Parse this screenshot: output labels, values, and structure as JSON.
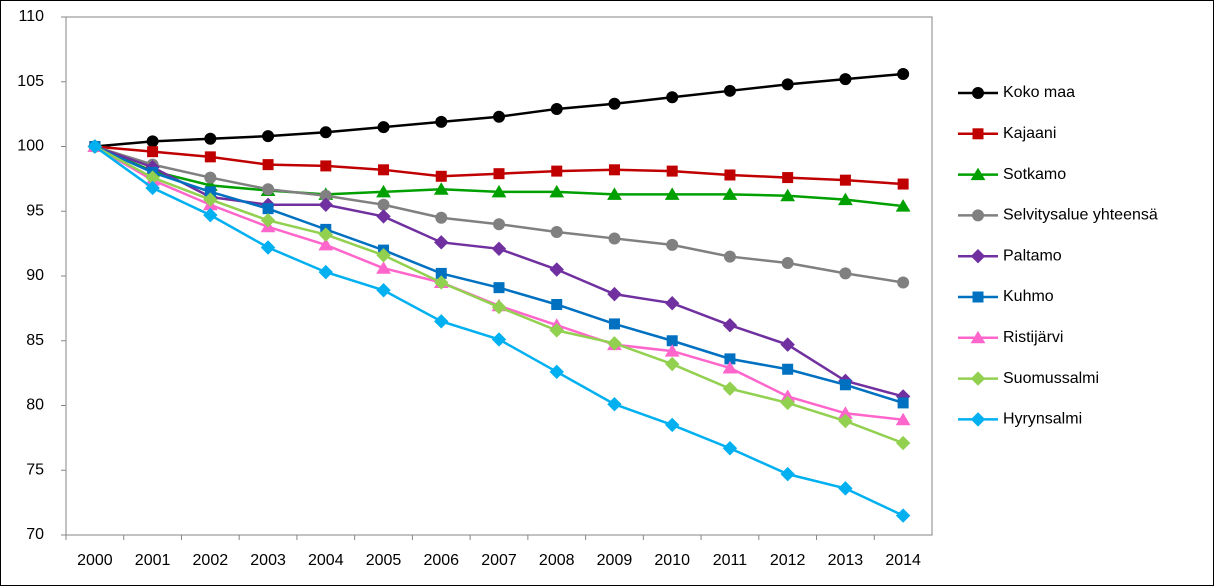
{
  "chart_data": {
    "type": "line",
    "categories": [
      "2000",
      "2001",
      "2002",
      "2003",
      "2004",
      "2005",
      "2006",
      "2007",
      "2008",
      "2009",
      "2010",
      "2011",
      "2012",
      "2013",
      "2014"
    ],
    "ylim": [
      70,
      110
    ],
    "yticks": [
      70,
      75,
      80,
      85,
      90,
      95,
      100,
      105,
      110
    ],
    "grid": false,
    "legend": "right",
    "series": [
      {
        "name": "Koko maa",
        "color": "#000000",
        "marker": "circle",
        "values": [
          100,
          100.4,
          100.6,
          100.8,
          101.1,
          101.5,
          101.9,
          102.3,
          102.9,
          103.3,
          103.8,
          104.3,
          104.8,
          105.2,
          105.6
        ]
      },
      {
        "name": "Kajaani",
        "color": "#c00000",
        "marker": "square",
        "values": [
          100,
          99.6,
          99.2,
          98.6,
          98.5,
          98.2,
          97.7,
          97.9,
          98.1,
          98.2,
          98.1,
          97.8,
          97.6,
          97.4,
          97.1
        ]
      },
      {
        "name": "Sotkamo",
        "color": "#00a000",
        "marker": "triangle",
        "values": [
          100,
          98.1,
          97.0,
          96.6,
          96.3,
          96.5,
          96.7,
          96.5,
          96.5,
          96.3,
          96.3,
          96.3,
          96.2,
          95.9,
          95.4
        ]
      },
      {
        "name": "Selvitysalue yhteensä",
        "color": "#808080",
        "marker": "circle",
        "values": [
          100,
          98.6,
          97.6,
          96.7,
          96.2,
          95.5,
          94.5,
          94.0,
          93.4,
          92.9,
          92.4,
          91.5,
          91.0,
          90.2,
          89.5
        ]
      },
      {
        "name": "Paltamo",
        "color": "#7030a0",
        "marker": "diamond",
        "values": [
          100,
          98.4,
          96.1,
          95.5,
          95.5,
          94.6,
          92.6,
          92.1,
          90.5,
          88.6,
          87.9,
          86.2,
          84.7,
          81.9,
          80.7
        ]
      },
      {
        "name": "Kuhmo",
        "color": "#0070c0",
        "marker": "square",
        "values": [
          100,
          98.0,
          96.5,
          95.2,
          93.6,
          92.0,
          90.2,
          89.1,
          87.8,
          86.3,
          85.0,
          83.6,
          82.8,
          81.6,
          80.2
        ]
      },
      {
        "name": "Ristijärvi",
        "color": "#ff66cc",
        "marker": "triangle",
        "values": [
          100,
          97.4,
          95.5,
          93.8,
          92.4,
          90.6,
          89.5,
          87.7,
          86.2,
          84.7,
          84.2,
          82.9,
          80.7,
          79.4,
          78.9
        ]
      },
      {
        "name": "Suomussalmi",
        "color": "#92d050",
        "marker": "diamond",
        "values": [
          100,
          97.6,
          95.9,
          94.3,
          93.2,
          91.6,
          89.5,
          87.6,
          85.8,
          84.8,
          83.2,
          81.3,
          80.2,
          78.8,
          77.1
        ]
      },
      {
        "name": "Hyrynsalmi",
        "color": "#00b0f0",
        "marker": "diamond",
        "values": [
          100,
          96.8,
          94.7,
          92.2,
          90.3,
          88.9,
          86.5,
          85.1,
          82.6,
          80.1,
          78.5,
          76.7,
          74.7,
          73.6,
          71.5
        ]
      }
    ]
  }
}
